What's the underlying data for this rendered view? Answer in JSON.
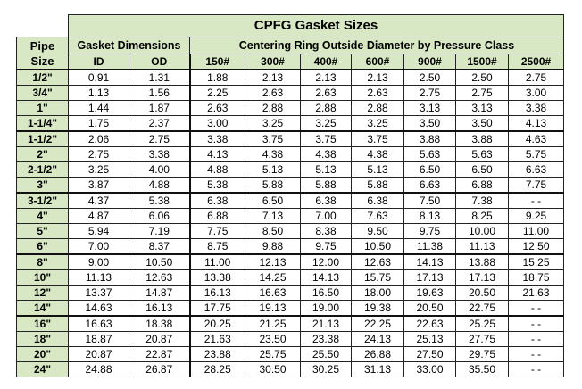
{
  "title": "CPFG Gasket Sizes",
  "pipe_header": [
    "Pipe",
    "Size"
  ],
  "gasket_header": "Gasket Dimensions",
  "centering_header": "Centering Ring Outside Diameter by Pressure Class",
  "columns": [
    "ID",
    "OD",
    "150#",
    "300#",
    "400#",
    "600#",
    "900#",
    "1500#",
    "2500#"
  ],
  "rows": [
    [
      "1/2\"",
      "0.91",
      "1.31",
      "1.88",
      "2.13",
      "2.13",
      "2.13",
      "2.50",
      "2.50",
      "2.75"
    ],
    [
      "3/4\"",
      "1.13",
      "1.56",
      "2.25",
      "2.63",
      "2.63",
      "2.63",
      "2.75",
      "2.75",
      "3.00"
    ],
    [
      "1\"",
      "1.44",
      "1.87",
      "2.63",
      "2.88",
      "2.88",
      "2.88",
      "3.13",
      "3.13",
      "3.38"
    ],
    [
      "1-1/4\"",
      "1.75",
      "2.37",
      "3.00",
      "3.25",
      "3.25",
      "3.25",
      "3.50",
      "3.50",
      "4.13"
    ],
    [
      "1-1/2\"",
      "2.06",
      "2.75",
      "3.38",
      "3.75",
      "3.75",
      "3.75",
      "3.88",
      "3.88",
      "4.63"
    ],
    [
      "2\"",
      "2.75",
      "3.38",
      "4.13",
      "4.38",
      "4.38",
      "4.38",
      "5.63",
      "5.63",
      "5.75"
    ],
    [
      "2-1/2\"",
      "3.25",
      "4.00",
      "4.88",
      "5.13",
      "5.13",
      "5.13",
      "6.50",
      "6.50",
      "6.63"
    ],
    [
      "3\"",
      "3.87",
      "4.88",
      "5.38",
      "5.88",
      "5.88",
      "5.88",
      "6.63",
      "6.88",
      "7.75"
    ],
    [
      "3-1/2\"",
      "4.37",
      "5.38",
      "6.38",
      "6.50",
      "6.38",
      "6.38",
      "7.50",
      "7.38",
      "- -"
    ],
    [
      "4\"",
      "4.87",
      "6.06",
      "6.88",
      "7.13",
      "7.00",
      "7.63",
      "8.13",
      "8.25",
      "9.25"
    ],
    [
      "5\"",
      "5.94",
      "7.19",
      "7.75",
      "8.50",
      "8.38",
      "9.50",
      "9.75",
      "10.00",
      "11.00"
    ],
    [
      "6\"",
      "7.00",
      "8.37",
      "8.75",
      "9.88",
      "9.75",
      "10.50",
      "11.38",
      "11.13",
      "12.50"
    ],
    [
      "8\"",
      "9.00",
      "10.50",
      "11.00",
      "12.13",
      "12.00",
      "12.63",
      "14.13",
      "13.88",
      "15.25"
    ],
    [
      "10\"",
      "11.13",
      "12.63",
      "13.38",
      "14.25",
      "14.13",
      "15.75",
      "17.13",
      "17.13",
      "18.75"
    ],
    [
      "12\"",
      "13.37",
      "14.87",
      "16.13",
      "16.63",
      "16.50",
      "18.00",
      "19.63",
      "20.50",
      "21.63"
    ],
    [
      "14\"",
      "14.63",
      "16.13",
      "17.75",
      "19.13",
      "19.00",
      "19.38",
      "20.50",
      "22.75",
      "- -"
    ],
    [
      "16\"",
      "16.63",
      "18.38",
      "20.25",
      "21.25",
      "21.13",
      "22.25",
      "22.63",
      "25.25",
      "- -"
    ],
    [
      "18\"",
      "18.87",
      "20.87",
      "21.63",
      "23.50",
      "23.38",
      "24.13",
      "25.13",
      "27.75",
      "- -"
    ],
    [
      "20\"",
      "20.87",
      "22.87",
      "23.88",
      "25.75",
      "25.50",
      "26.88",
      "27.50",
      "29.75",
      "- -"
    ],
    [
      "24\"",
      "24.88",
      "26.87",
      "28.25",
      "30.50",
      "30.25",
      "31.13",
      "33.00",
      "35.50",
      "- -"
    ]
  ],
  "group_starts": [
    0,
    4,
    8,
    12,
    16
  ],
  "colors": {
    "header_bg": "#d9e8c4",
    "border": "#222222"
  }
}
